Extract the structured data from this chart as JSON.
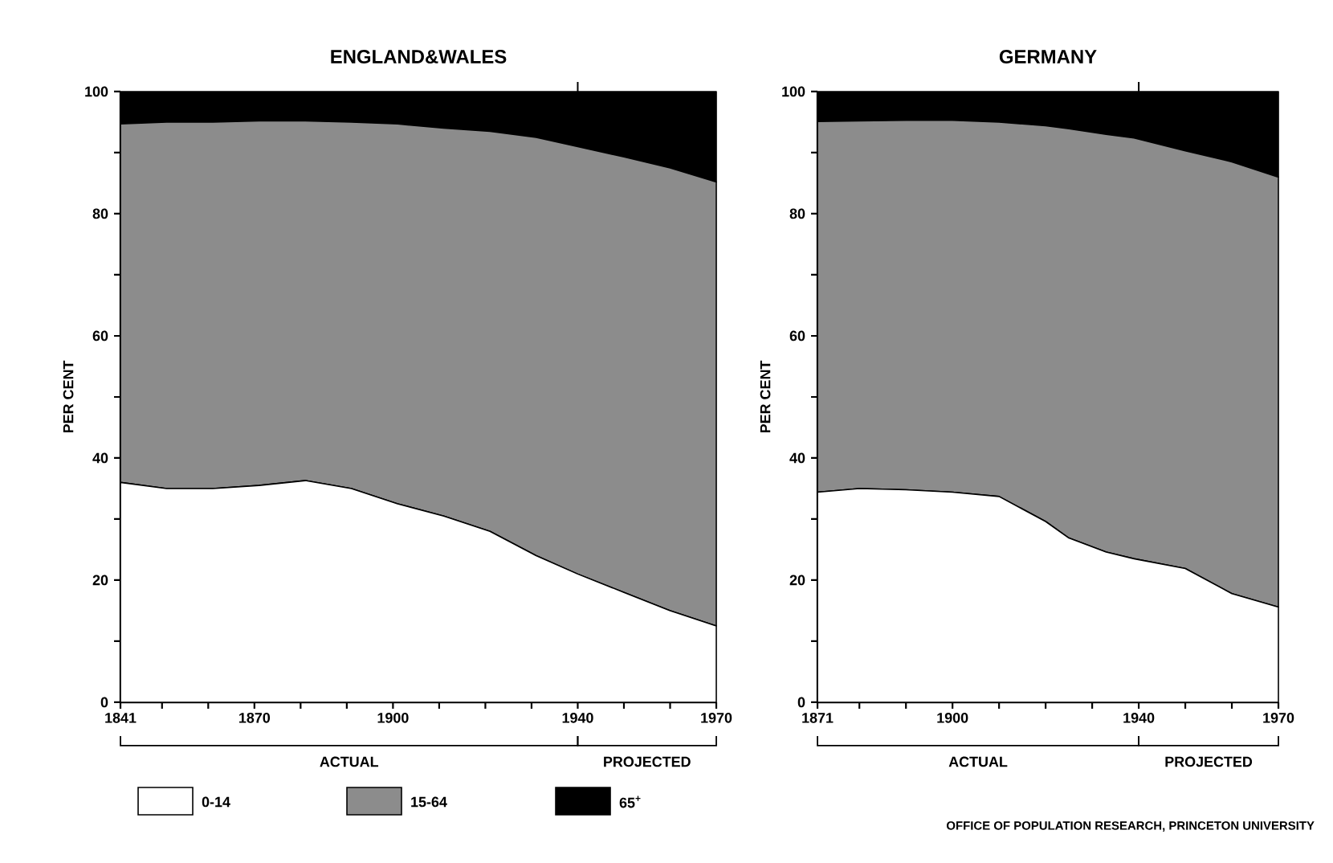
{
  "chart_data": [
    {
      "type": "area",
      "stacked": true,
      "title": "ENGLAND&WALES",
      "ylabel": "PER CENT",
      "legend": "bottom",
      "x": [
        1841,
        1851,
        1861,
        1871,
        1881,
        1891,
        1901,
        1911,
        1921,
        1931,
        1940,
        1950,
        1960,
        1970
      ],
      "series": [
        {
          "name": "0-14",
          "color": "#ffffff",
          "values": [
            36,
            35,
            35,
            35.5,
            36.3,
            35,
            32.5,
            30.5,
            28,
            24,
            21,
            18,
            15,
            12.5
          ]
        },
        {
          "name": "15-64",
          "color": "#8c8c8c",
          "values": [
            58.7,
            60,
            60,
            59.7,
            58.9,
            60,
            62.2,
            63.5,
            65.5,
            68.5,
            70,
            71.3,
            72.5,
            72.7
          ]
        },
        {
          "name": "65$^{+}$",
          "color": "#000000",
          "values": [
            5.3,
            5,
            5,
            4.8,
            4.8,
            5,
            5.3,
            6,
            6.5,
            7.5,
            9,
            10.7,
            12.5,
            14.8
          ]
        }
      ],
      "xlim": [
        1841,
        1970
      ],
      "xticks": [
        1841,
        {
          "value": 1850,
          "label": null
        },
        {
          "value": 1860,
          "label": null
        },
        1870,
        {
          "value": 1880,
          "label": null
        },
        {
          "value": 1890,
          "label": null
        },
        1900,
        {
          "value": 1910,
          "label": null
        },
        {
          "value": 1920,
          "label": null
        },
        {
          "value": 1930,
          "label": null
        },
        1940,
        {
          "value": 1950,
          "label": null
        },
        {
          "value": 1960,
          "label": null
        },
        1970
      ],
      "ylim": [
        0,
        100
      ],
      "yticks": [
        0,
        {
          "value": 10,
          "label": null
        },
        20,
        {
          "value": 30,
          "label": null
        },
        40,
        {
          "value": 50,
          "label": null
        },
        60,
        {
          "value": 70,
          "label": null
        },
        80,
        {
          "value": 90,
          "label": null
        },
        100
      ],
      "ref_lines": [
        {
          "axis": "x",
          "value": 1940
        }
      ],
      "annotations": [
        "ACTUAL",
        "PROJECTED"
      ]
    },
    {
      "type": "area",
      "stacked": true,
      "title": "GERMANY",
      "ylabel": "PER CENT",
      "x": [
        1871,
        1880,
        1890,
        1900,
        1910,
        1920,
        1925,
        1933,
        1939,
        1950,
        1960,
        1970
      ],
      "series": [
        {
          "color": "#ffffff",
          "values": [
            34.4,
            35,
            34.8,
            34.4,
            33.7,
            29.6,
            26.9,
            24.6,
            23.5,
            21.9,
            17.8,
            15.6
          ]
        },
        {
          "color": "#8c8c8c",
          "values": [
            60.7,
            60.2,
            60.5,
            60.9,
            61.3,
            64.8,
            67,
            68.4,
            68.9,
            68.4,
            70.7,
            70.4
          ]
        },
        {
          "color": "#000000",
          "values": [
            4.9,
            4.8,
            4.7,
            4.7,
            5,
            5.6,
            6.1,
            7,
            7.6,
            9.7,
            11.5,
            14
          ]
        }
      ],
      "xlim": [
        1871,
        1970
      ],
      "xticks": [
        1871,
        {
          "value": 1880,
          "label": null
        },
        {
          "value": 1890,
          "label": null
        },
        1900,
        {
          "value": 1910,
          "label": null
        },
        {
          "value": 1920,
          "label": null
        },
        {
          "value": 1930,
          "label": null
        },
        1940,
        {
          "value": 1950,
          "label": null
        },
        {
          "value": 1960,
          "label": null
        },
        1970
      ],
      "ylim": [
        0,
        100
      ],
      "yticks": [
        0,
        {
          "value": 10,
          "label": null
        },
        20,
        {
          "value": 30,
          "label": null
        },
        40,
        {
          "value": 50,
          "label": null
        },
        60,
        {
          "value": 70,
          "label": null
        },
        80,
        {
          "value": 90,
          "label": null
        },
        100
      ],
      "ref_lines": [
        {
          "axis": "x",
          "value": 1940
        }
      ],
      "annotations": [
        "ACTUAL",
        "PROJECTED",
        "OFFICE OF POPULATION RESEARCH, PRINCETON UNIVERSITY"
      ]
    }
  ]
}
